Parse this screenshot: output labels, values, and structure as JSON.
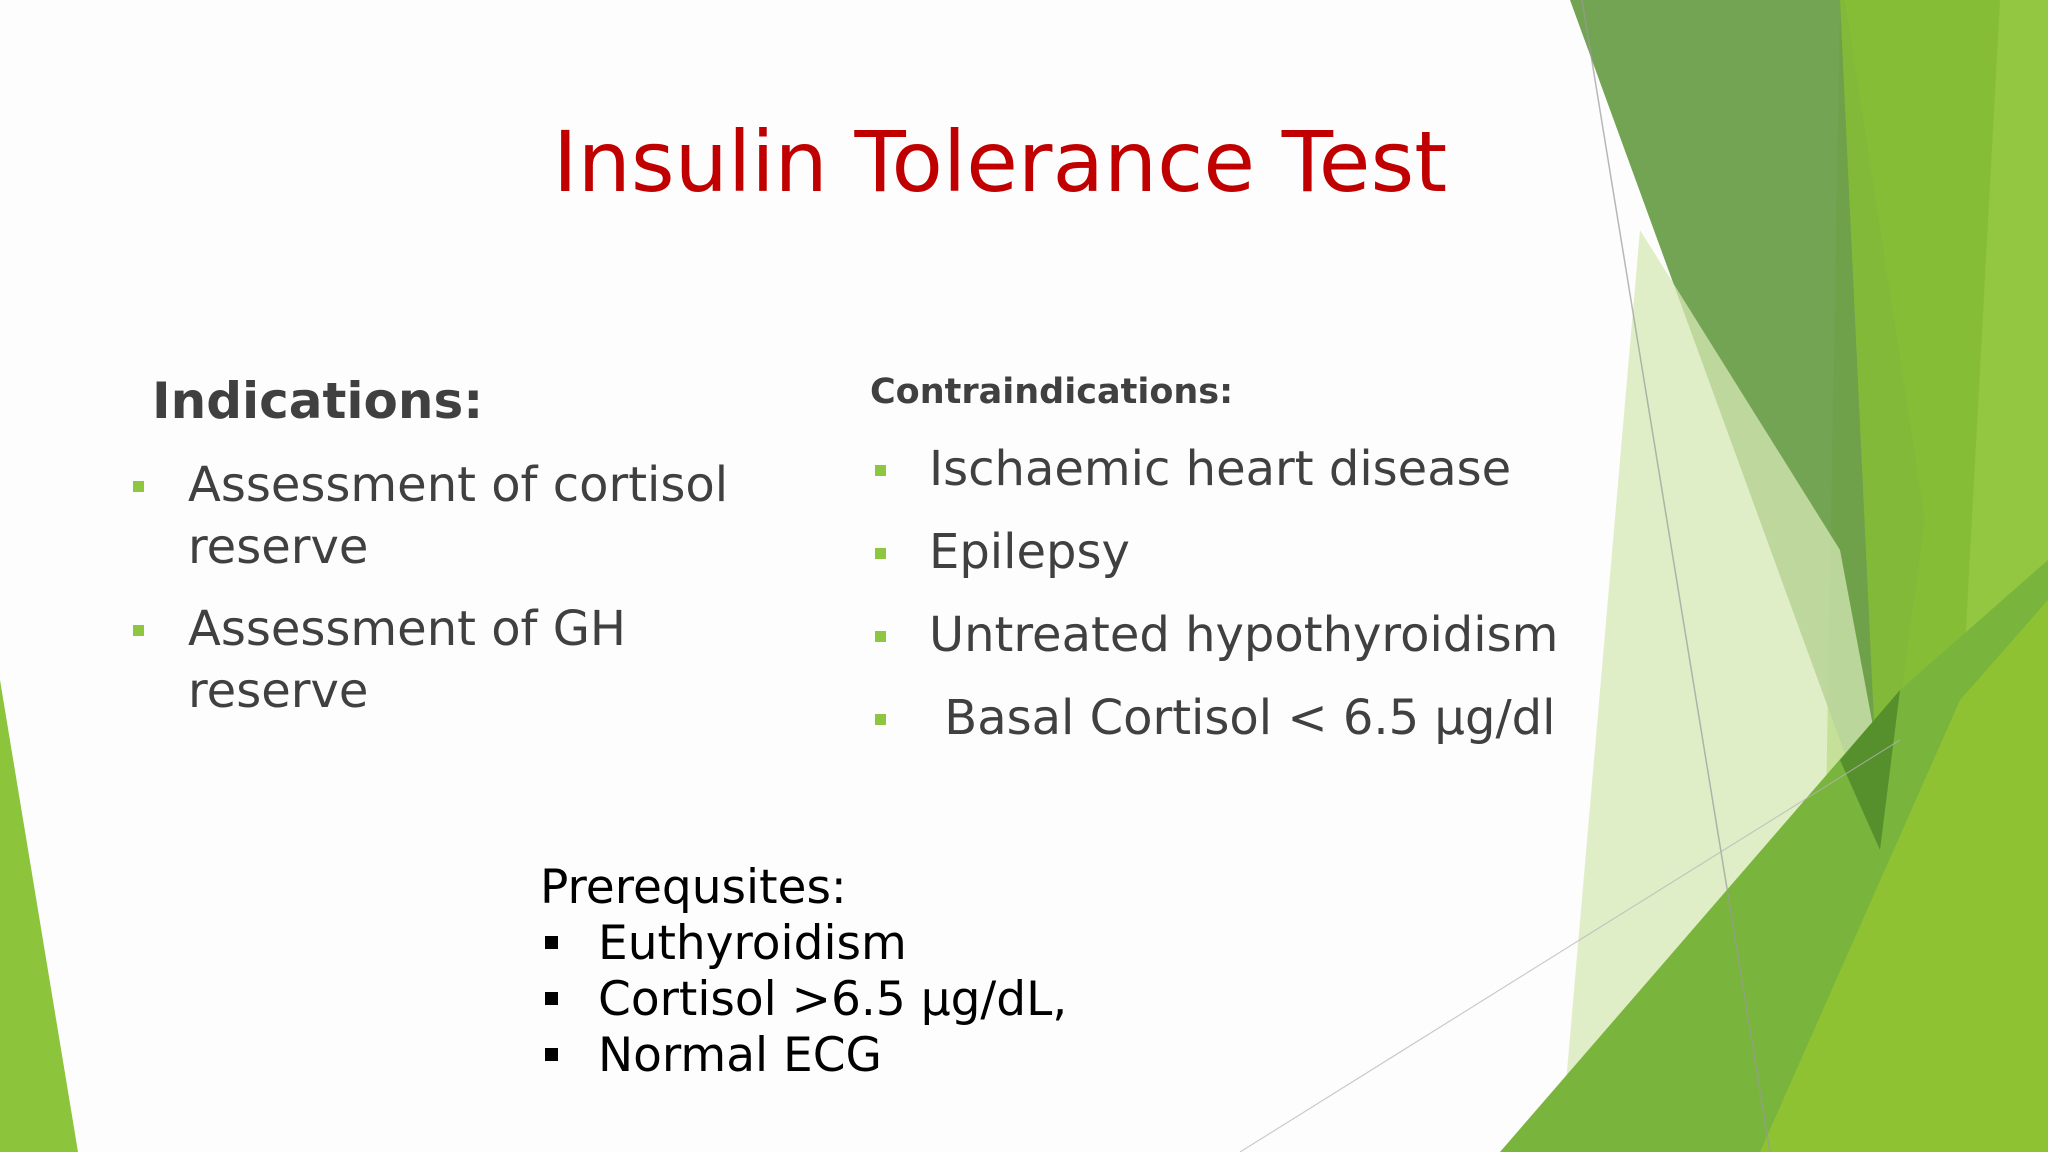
{
  "slide": {
    "title": "Insulin Tolerance Test",
    "indications": {
      "heading": "Indications:",
      "items": [
        "Assessment of cortisol reserve",
        "Assessment of GH reserve"
      ]
    },
    "contraindications": {
      "heading": "Contraindications:",
      "items": [
        "Ischaemic heart disease",
        "Epilepsy",
        "Untreated hypothyroidism",
        " Basal Cortisol < 6.5 µg/dl"
      ]
    },
    "prerequisites": {
      "heading": "Prerequsites:",
      "items": [
        "Euthyroidism",
        "Cortisol >6.5 µg/dL,",
        "Normal ECG"
      ]
    }
  },
  "colors": {
    "title": "#c00000",
    "text": "#404040",
    "prereq_text": "#000000",
    "bullet": "#8dc63f",
    "green_dark": "#5f9a3c",
    "green_mid": "#78b33a",
    "green_light": "#9ccc3a",
    "green_pale": "#d6e8b8"
  }
}
